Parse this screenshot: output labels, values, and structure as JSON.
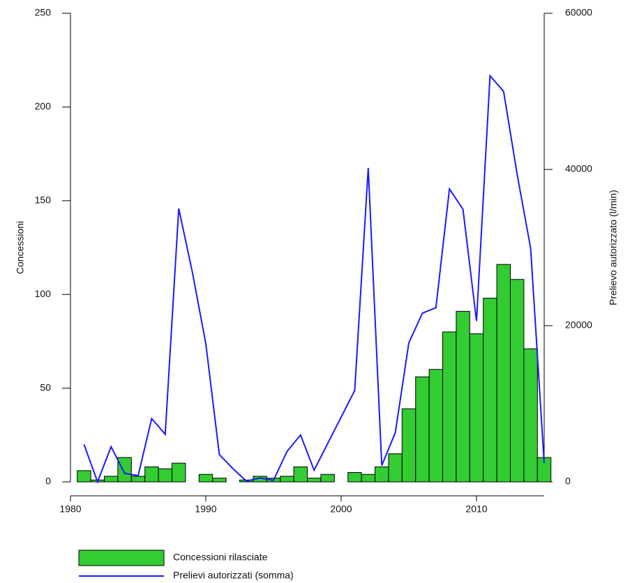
{
  "chart_data": {
    "type": "bar-line",
    "x": [
      1981,
      1982,
      1983,
      1984,
      1985,
      1986,
      1987,
      1988,
      1989,
      1990,
      1991,
      1992,
      1993,
      1994,
      1995,
      1996,
      1997,
      1998,
      1999,
      2000,
      2001,
      2002,
      2003,
      2004,
      2005,
      2006,
      2007,
      2008,
      2009,
      2010,
      2011,
      2012,
      2013,
      2014,
      2015
    ],
    "xlim": [
      1980,
      2015
    ],
    "xticks": [
      1980,
      1990,
      2000,
      2010
    ],
    "ylim": [
      0,
      250
    ],
    "yticks": [
      0,
      50,
      100,
      150,
      200,
      250
    ],
    "y2lim": [
      0,
      60000
    ],
    "y2ticks": [
      0,
      20000,
      40000,
      60000
    ],
    "ylabel": "Concessioni",
    "y2label": "Prelievo autorizzato (l/min)",
    "series": [
      {
        "name": "Concessioni rilasciate",
        "type": "bar",
        "color": "#33cc33",
        "values": [
          6,
          1,
          3,
          13,
          3,
          8,
          7,
          10,
          0,
          4,
          2,
          0,
          1,
          3,
          2,
          3,
          8,
          2,
          4,
          0,
          5,
          4,
          8,
          15,
          39,
          56,
          60,
          80,
          91,
          79,
          98,
          116,
          108,
          71,
          13
        ]
      },
      {
        "name": "Prelievi autorizzati (somma)",
        "type": "line",
        "color": "#1a1aff",
        "axis": "y2",
        "values": [
          4800,
          0,
          4500,
          1100,
          800,
          8100,
          6100,
          35000,
          26900,
          17700,
          3500,
          1700,
          100,
          500,
          200,
          3900,
          6000,
          1500,
          4900,
          8300,
          11700,
          40200,
          2100,
          6300,
          17800,
          21600,
          22300,
          37500,
          34900,
          20600,
          52000,
          50000,
          39400,
          29900,
          2400
        ]
      }
    ]
  }
}
